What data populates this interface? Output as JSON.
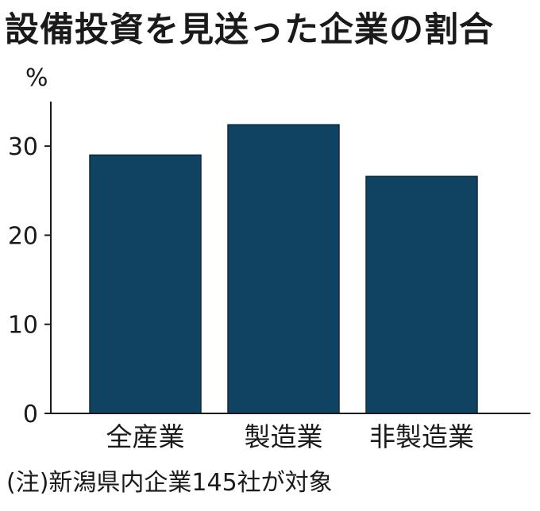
{
  "chart_data": {
    "type": "bar",
    "title": "設備投資を見送った企業の割合",
    "unit_label": "%",
    "categories": [
      "全産業",
      "製造業",
      "非製造業"
    ],
    "values": [
      29,
      32.4,
      26.6
    ],
    "ylim": [
      0,
      35
    ],
    "yticks": [
      0,
      10,
      20,
      30
    ],
    "ytick_labels": [
      "0",
      "10",
      "20",
      "30"
    ],
    "note": "(注)新潟県内企業145社が対象",
    "bar_color": "#0f4361",
    "grid": false,
    "legend": "none"
  }
}
